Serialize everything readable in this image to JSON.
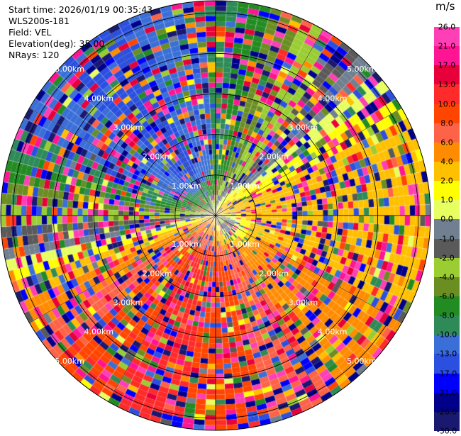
{
  "header": {
    "start_time": "Start time: 2026/01/19 00:35:43",
    "instrument": "WLS200s-181",
    "field": "Field: VEL",
    "elevation": "Elevation(deg): 35.00",
    "nrays": "NRays: 120"
  },
  "colorbar": {
    "unit": "m/s",
    "ticks": [
      "26.0",
      "21.0",
      "17.0",
      "13.0",
      "10.0",
      "8.0",
      "6.0",
      "4.0",
      "2.0",
      "1.0",
      "0.0",
      "-1.0",
      "-2.0",
      "-4.0",
      "-6.0",
      "-8.0",
      "-10.0",
      "-13.0",
      "-17.0",
      "-21.0",
      "-26.0",
      "-30.0"
    ],
    "colors": [
      "#ff3fb6",
      "#ff1493",
      "#e8003a",
      "#ff2a2a",
      "#ff4500",
      "#ff6347",
      "#ff8c00",
      "#ffc000",
      "#ffff00",
      "#e8ff60",
      "#708090",
      "#5a5a5a",
      "#9acd32",
      "#6b8e23",
      "#228b22",
      "#2e8b57",
      "#3a6fd8",
      "#2b50e0",
      "#0000ff",
      "#00008b",
      "#191970"
    ]
  },
  "chart_data": {
    "type": "ppi_polar",
    "field": "VEL",
    "units": "m/s",
    "elevation_deg": 35.0,
    "n_rays": 120,
    "range_rings": [
      {
        "value": 1.0,
        "label": "1.00km"
      },
      {
        "value": 2.0,
        "label": "2.00km"
      },
      {
        "value": 3.0,
        "label": "3.00km"
      },
      {
        "value": 4.0,
        "label": "4.00km"
      },
      {
        "value": 5.0,
        "label": "5.00km"
      }
    ],
    "max_range_km": 5.3,
    "pattern": "roughly sinusoidal radial velocity: positive (red/yellow) toward south and southeast, negative (blue/green) toward west and northwest, noisy speckle at far range"
  }
}
